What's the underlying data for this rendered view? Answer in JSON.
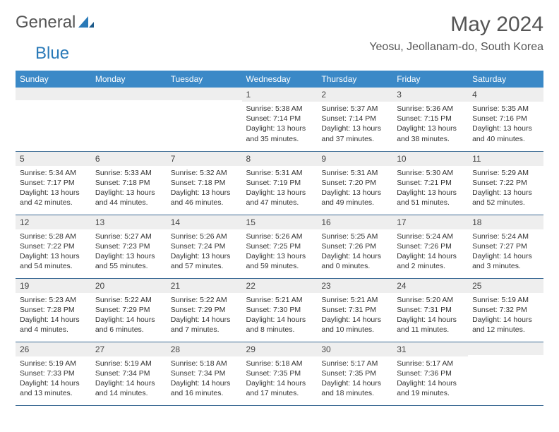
{
  "logo": {
    "text1": "General",
    "text2": "Blue"
  },
  "title": "May 2024",
  "location": "Yeosu, Jeollanam-do, South Korea",
  "colors": {
    "header_bg": "#3b89c7",
    "header_text": "#ffffff",
    "daynum_bg": "#eeeeee",
    "row_border": "#3b6a94",
    "logo_gray": "#555555",
    "logo_blue": "#2a7ab8"
  },
  "weekdays": [
    "Sunday",
    "Monday",
    "Tuesday",
    "Wednesday",
    "Thursday",
    "Friday",
    "Saturday"
  ],
  "weeks": [
    [
      {
        "day": "",
        "lines": []
      },
      {
        "day": "",
        "lines": []
      },
      {
        "day": "",
        "lines": []
      },
      {
        "day": "1",
        "lines": [
          "Sunrise: 5:38 AM",
          "Sunset: 7:14 PM",
          "Daylight: 13 hours",
          "and 35 minutes."
        ]
      },
      {
        "day": "2",
        "lines": [
          "Sunrise: 5:37 AM",
          "Sunset: 7:14 PM",
          "Daylight: 13 hours",
          "and 37 minutes."
        ]
      },
      {
        "day": "3",
        "lines": [
          "Sunrise: 5:36 AM",
          "Sunset: 7:15 PM",
          "Daylight: 13 hours",
          "and 38 minutes."
        ]
      },
      {
        "day": "4",
        "lines": [
          "Sunrise: 5:35 AM",
          "Sunset: 7:16 PM",
          "Daylight: 13 hours",
          "and 40 minutes."
        ]
      }
    ],
    [
      {
        "day": "5",
        "lines": [
          "Sunrise: 5:34 AM",
          "Sunset: 7:17 PM",
          "Daylight: 13 hours",
          "and 42 minutes."
        ]
      },
      {
        "day": "6",
        "lines": [
          "Sunrise: 5:33 AM",
          "Sunset: 7:18 PM",
          "Daylight: 13 hours",
          "and 44 minutes."
        ]
      },
      {
        "day": "7",
        "lines": [
          "Sunrise: 5:32 AM",
          "Sunset: 7:18 PM",
          "Daylight: 13 hours",
          "and 46 minutes."
        ]
      },
      {
        "day": "8",
        "lines": [
          "Sunrise: 5:31 AM",
          "Sunset: 7:19 PM",
          "Daylight: 13 hours",
          "and 47 minutes."
        ]
      },
      {
        "day": "9",
        "lines": [
          "Sunrise: 5:31 AM",
          "Sunset: 7:20 PM",
          "Daylight: 13 hours",
          "and 49 minutes."
        ]
      },
      {
        "day": "10",
        "lines": [
          "Sunrise: 5:30 AM",
          "Sunset: 7:21 PM",
          "Daylight: 13 hours",
          "and 51 minutes."
        ]
      },
      {
        "day": "11",
        "lines": [
          "Sunrise: 5:29 AM",
          "Sunset: 7:22 PM",
          "Daylight: 13 hours",
          "and 52 minutes."
        ]
      }
    ],
    [
      {
        "day": "12",
        "lines": [
          "Sunrise: 5:28 AM",
          "Sunset: 7:22 PM",
          "Daylight: 13 hours",
          "and 54 minutes."
        ]
      },
      {
        "day": "13",
        "lines": [
          "Sunrise: 5:27 AM",
          "Sunset: 7:23 PM",
          "Daylight: 13 hours",
          "and 55 minutes."
        ]
      },
      {
        "day": "14",
        "lines": [
          "Sunrise: 5:26 AM",
          "Sunset: 7:24 PM",
          "Daylight: 13 hours",
          "and 57 minutes."
        ]
      },
      {
        "day": "15",
        "lines": [
          "Sunrise: 5:26 AM",
          "Sunset: 7:25 PM",
          "Daylight: 13 hours",
          "and 59 minutes."
        ]
      },
      {
        "day": "16",
        "lines": [
          "Sunrise: 5:25 AM",
          "Sunset: 7:26 PM",
          "Daylight: 14 hours",
          "and 0 minutes."
        ]
      },
      {
        "day": "17",
        "lines": [
          "Sunrise: 5:24 AM",
          "Sunset: 7:26 PM",
          "Daylight: 14 hours",
          "and 2 minutes."
        ]
      },
      {
        "day": "18",
        "lines": [
          "Sunrise: 5:24 AM",
          "Sunset: 7:27 PM",
          "Daylight: 14 hours",
          "and 3 minutes."
        ]
      }
    ],
    [
      {
        "day": "19",
        "lines": [
          "Sunrise: 5:23 AM",
          "Sunset: 7:28 PM",
          "Daylight: 14 hours",
          "and 4 minutes."
        ]
      },
      {
        "day": "20",
        "lines": [
          "Sunrise: 5:22 AM",
          "Sunset: 7:29 PM",
          "Daylight: 14 hours",
          "and 6 minutes."
        ]
      },
      {
        "day": "21",
        "lines": [
          "Sunrise: 5:22 AM",
          "Sunset: 7:29 PM",
          "Daylight: 14 hours",
          "and 7 minutes."
        ]
      },
      {
        "day": "22",
        "lines": [
          "Sunrise: 5:21 AM",
          "Sunset: 7:30 PM",
          "Daylight: 14 hours",
          "and 8 minutes."
        ]
      },
      {
        "day": "23",
        "lines": [
          "Sunrise: 5:21 AM",
          "Sunset: 7:31 PM",
          "Daylight: 14 hours",
          "and 10 minutes."
        ]
      },
      {
        "day": "24",
        "lines": [
          "Sunrise: 5:20 AM",
          "Sunset: 7:31 PM",
          "Daylight: 14 hours",
          "and 11 minutes."
        ]
      },
      {
        "day": "25",
        "lines": [
          "Sunrise: 5:19 AM",
          "Sunset: 7:32 PM",
          "Daylight: 14 hours",
          "and 12 minutes."
        ]
      }
    ],
    [
      {
        "day": "26",
        "lines": [
          "Sunrise: 5:19 AM",
          "Sunset: 7:33 PM",
          "Daylight: 14 hours",
          "and 13 minutes."
        ]
      },
      {
        "day": "27",
        "lines": [
          "Sunrise: 5:19 AM",
          "Sunset: 7:34 PM",
          "Daylight: 14 hours",
          "and 14 minutes."
        ]
      },
      {
        "day": "28",
        "lines": [
          "Sunrise: 5:18 AM",
          "Sunset: 7:34 PM",
          "Daylight: 14 hours",
          "and 16 minutes."
        ]
      },
      {
        "day": "29",
        "lines": [
          "Sunrise: 5:18 AM",
          "Sunset: 7:35 PM",
          "Daylight: 14 hours",
          "and 17 minutes."
        ]
      },
      {
        "day": "30",
        "lines": [
          "Sunrise: 5:17 AM",
          "Sunset: 7:35 PM",
          "Daylight: 14 hours",
          "and 18 minutes."
        ]
      },
      {
        "day": "31",
        "lines": [
          "Sunrise: 5:17 AM",
          "Sunset: 7:36 PM",
          "Daylight: 14 hours",
          "and 19 minutes."
        ]
      },
      {
        "day": "",
        "lines": []
      }
    ]
  ]
}
